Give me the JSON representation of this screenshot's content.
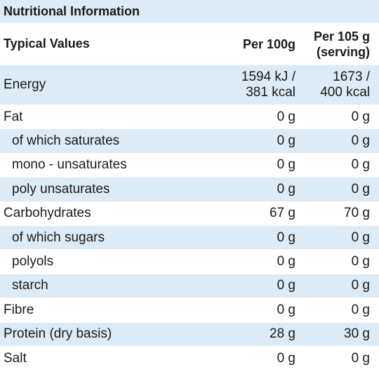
{
  "title": "Nutritional Information",
  "header": {
    "label": "Typical Values",
    "per_100g": [
      "Per 100g"
    ],
    "per_serving": [
      "Per 105 g",
      "(serving)"
    ]
  },
  "rows": [
    {
      "label": "Energy",
      "per_100g": [
        "1594 kJ /",
        "381 kcal"
      ],
      "per_serving": [
        "1673 /",
        "400 kcal"
      ]
    },
    {
      "label": "Fat",
      "per_100g": [
        "0 g"
      ],
      "per_serving": [
        "0 g"
      ],
      "subrows": [
        {
          "label": "of which saturates",
          "per_100g": [
            "0 g"
          ],
          "per_serving": [
            "0 g"
          ]
        },
        {
          "label": "mono - unsaturates",
          "per_100g": [
            "0 g"
          ],
          "per_serving": [
            "0 g"
          ]
        },
        {
          "label": "poly unsaturates",
          "per_100g": [
            "0 g"
          ],
          "per_serving": [
            "0 g"
          ]
        }
      ]
    },
    {
      "label": "Carbohydrates",
      "per_100g": [
        "67 g"
      ],
      "per_serving": [
        "70 g"
      ],
      "subrows": [
        {
          "label": "of which sugars",
          "per_100g": [
            "0 g"
          ],
          "per_serving": [
            "0 g"
          ]
        },
        {
          "label": "polyols",
          "per_100g": [
            "0 g"
          ],
          "per_serving": [
            "0 g"
          ]
        },
        {
          "label": "starch",
          "per_100g": [
            "0 g"
          ],
          "per_serving": [
            "0 g"
          ]
        }
      ]
    },
    {
      "label": "Fibre",
      "per_100g": [
        "0 g"
      ],
      "per_serving": [
        "0 g"
      ]
    },
    {
      "label": "Protein (dry basis)",
      "per_100g": [
        "28 g"
      ],
      "per_serving": [
        "30 g"
      ]
    },
    {
      "label": "Salt",
      "per_100g": [
        "0 g"
      ],
      "per_serving": [
        "0 g"
      ]
    }
  ]
}
